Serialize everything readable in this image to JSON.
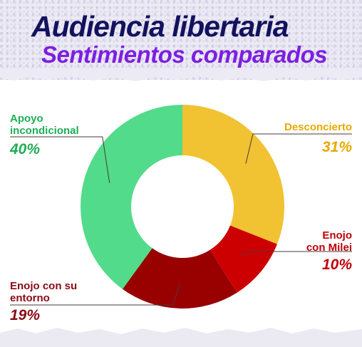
{
  "header": {
    "title": "Audiencia libertaria",
    "subtitle": "Sentimientos comparados"
  },
  "chart_data": {
    "type": "pie",
    "donut": true,
    "series": [
      {
        "name": "Desconcierto",
        "value": 31,
        "label": "31%",
        "color": "#f1c232"
      },
      {
        "name": "Enojo con Milei",
        "value": 10,
        "label": "10%",
        "color": "#cc0000"
      },
      {
        "name": "Enojo con su entorno",
        "value": 19,
        "label": "19%",
        "color": "#990000"
      },
      {
        "name": "Apoyo incondicional",
        "value": 40,
        "label": "40%",
        "color": "#52db8a"
      }
    ],
    "label_lines": {
      "desconcierto": "Desconcierto",
      "milei_1": "Enojo",
      "milei_2": "con Milei",
      "entorno_1": "Enojo con su",
      "entorno_2": "entorno",
      "apoyo_1": "Apoyo",
      "apoyo_2": "incondicional"
    },
    "label_colors": {
      "desconcierto": "#e8a800",
      "milei": "#c0000a",
      "entorno": "#8a0a14",
      "apoyo": "#1eae55"
    }
  }
}
